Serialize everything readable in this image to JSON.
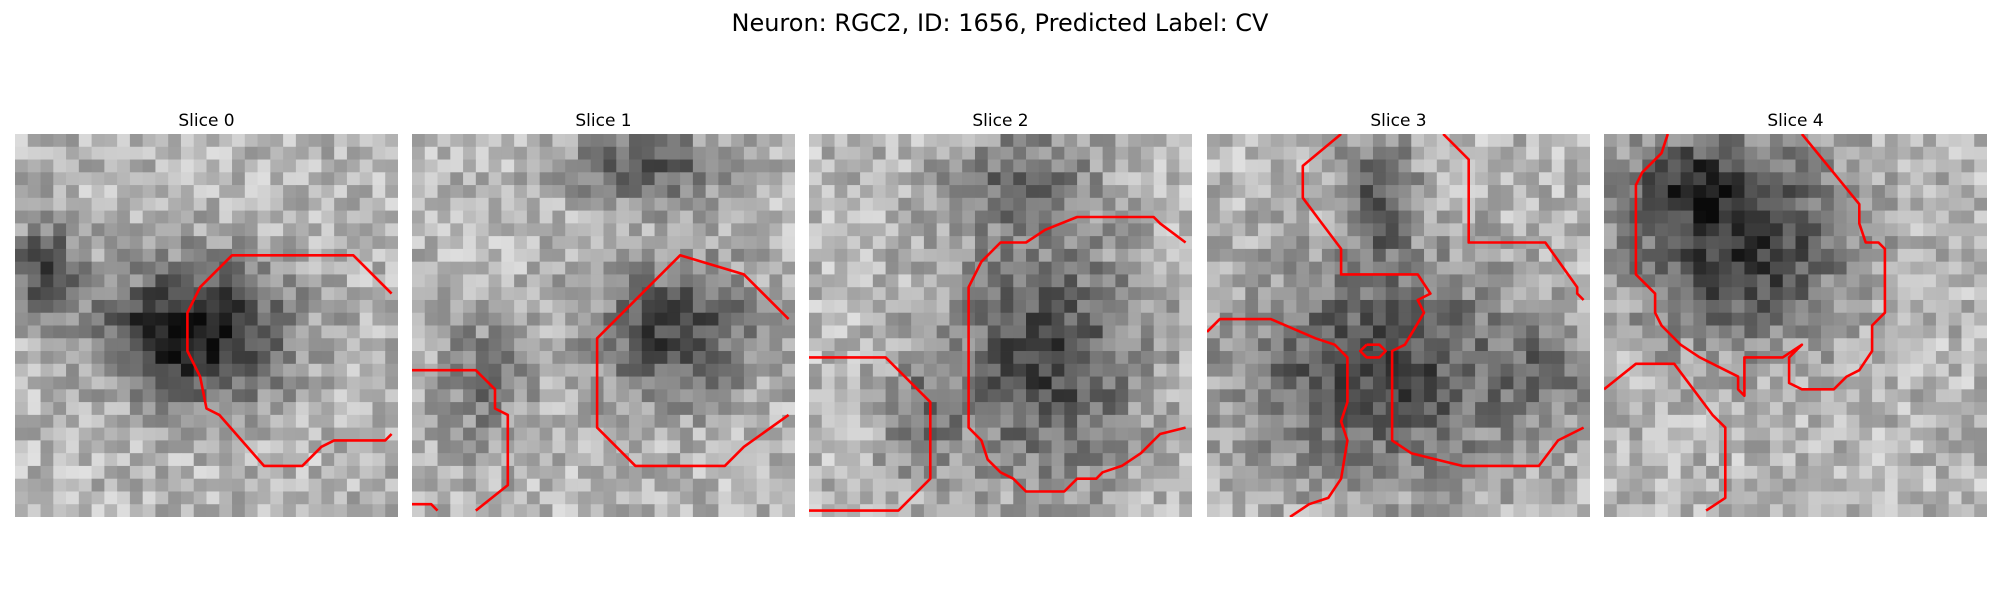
{
  "figure": {
    "title": "Neuron: RGC2, ID: 1656, Predicted Label: CV"
  },
  "panels": [
    {
      "title": "Slice 0"
    },
    {
      "title": "Slice 1"
    },
    {
      "title": "Slice 2"
    },
    {
      "title": "Slice 3"
    },
    {
      "title": "Slice 4"
    }
  ],
  "colors": {
    "contour": "#ff0000"
  }
}
